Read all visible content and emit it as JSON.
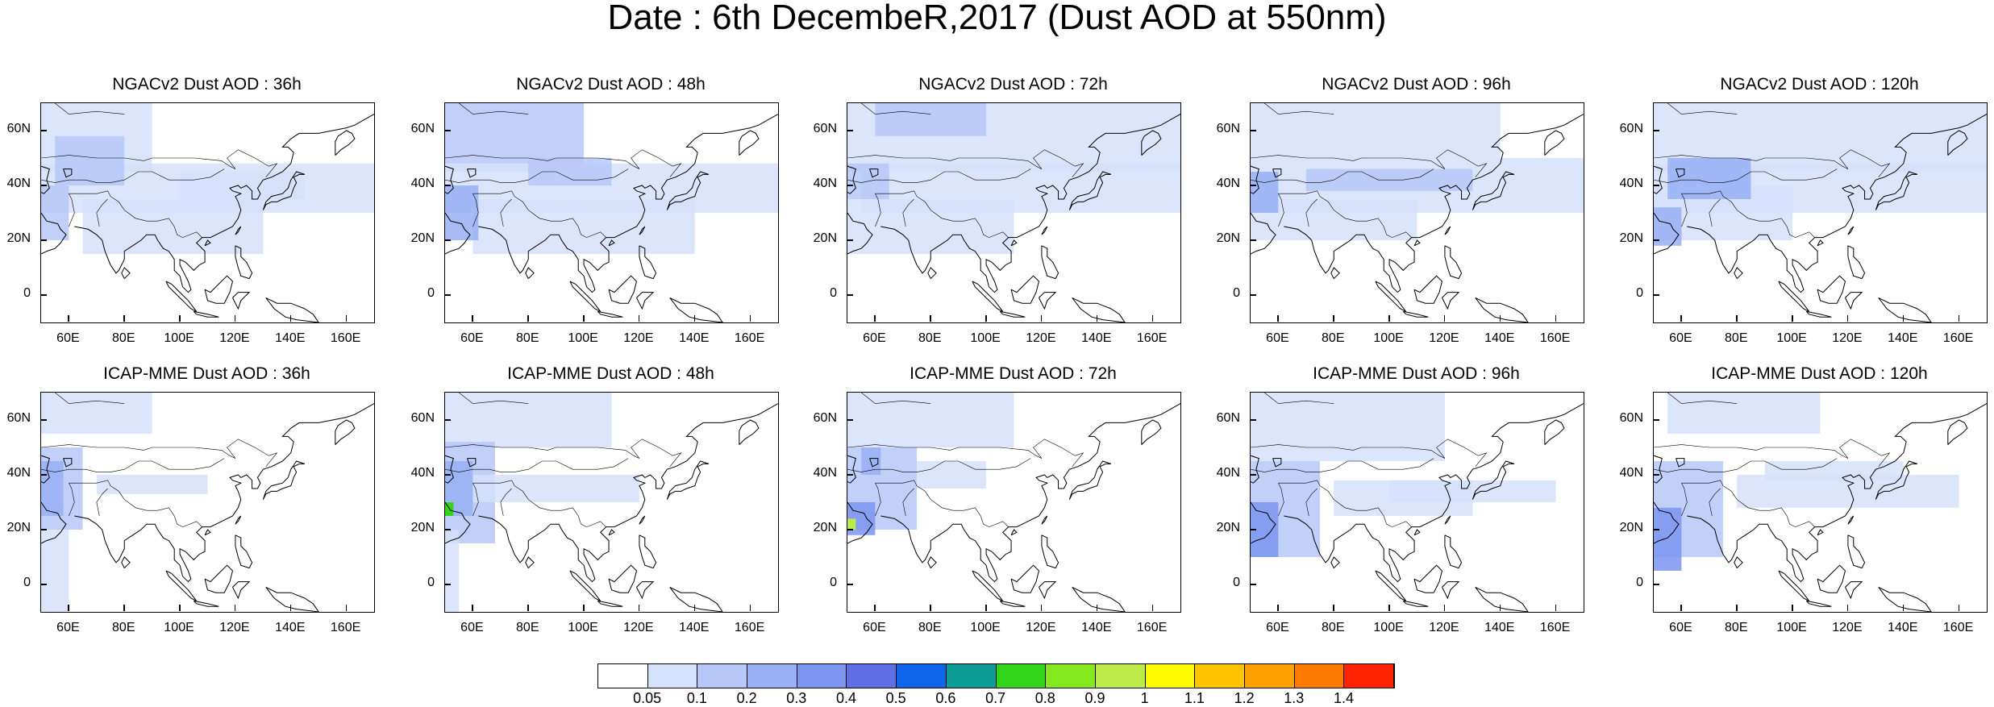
{
  "title": "Date : 6th DecembeR,2017 (Dust AOD at 550nm)",
  "lat_labels": [
    "60N",
    "40N",
    "20N",
    "0"
  ],
  "lon_labels": [
    "60E",
    "80E",
    "100E",
    "120E",
    "140E",
    "160E"
  ],
  "panels": [
    {
      "title": "NGACv2 Dust AOD : 36h"
    },
    {
      "title": "NGACv2 Dust AOD : 48h"
    },
    {
      "title": "NGACv2 Dust AOD : 72h"
    },
    {
      "title": "NGACv2 Dust AOD : 96h"
    },
    {
      "title": "NGACv2 Dust AOD : 120h"
    },
    {
      "title": "ICAP-MME Dust AOD : 36h"
    },
    {
      "title": "ICAP-MME Dust AOD : 48h"
    },
    {
      "title": "ICAP-MME Dust AOD : 72h"
    },
    {
      "title": "ICAP-MME Dust AOD : 96h"
    },
    {
      "title": "ICAP-MME Dust AOD : 120h"
    }
  ],
  "colorbar": {
    "labels": [
      "0.05",
      "0.1",
      "0.2",
      "0.3",
      "0.4",
      "0.5",
      "0.6",
      "0.7",
      "0.8",
      "0.9",
      "1",
      "1.1",
      "1.2",
      "1.3",
      "1.4"
    ],
    "colors": [
      "#ffffff",
      "#d6e1fb",
      "#b6c8f8",
      "#98b0f5",
      "#7b95f0",
      "#5f6fe6",
      "#1066ea",
      "#0e9c97",
      "#33d41a",
      "#86e81e",
      "#bdeb4a",
      "#fffb00",
      "#ffc400",
      "#ffa100",
      "#ff7a00",
      "#fb2300"
    ]
  },
  "colors": {
    "land_outline": "#000000",
    "dust_low": "#d6e1fb",
    "dust_mid": "#b6c8f8",
    "dust_high": "#98b0f5"
  }
}
